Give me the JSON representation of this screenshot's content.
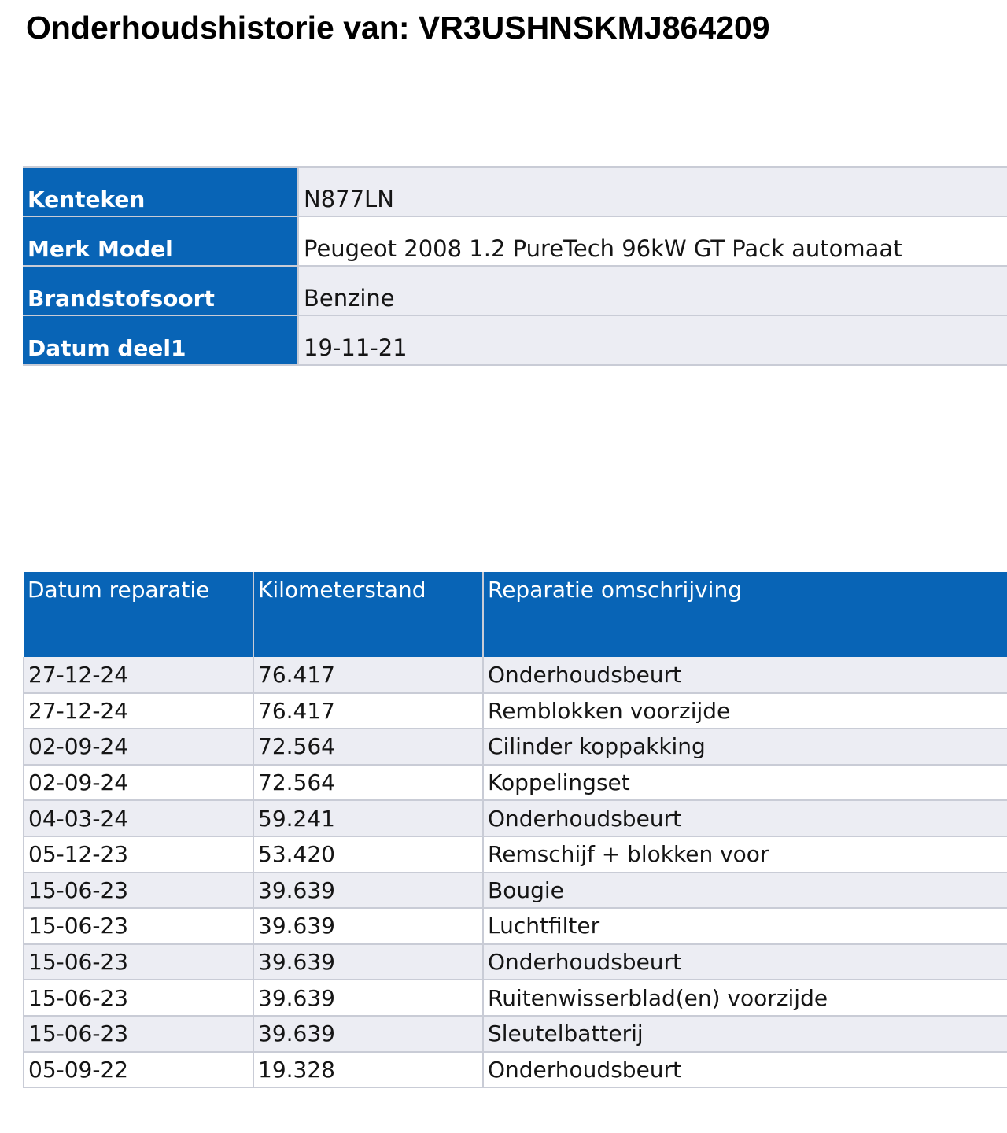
{
  "document": {
    "title": "Onderhoudshistorie van: VR3USHNSKMJ864209"
  },
  "vehicle": {
    "rows": [
      {
        "label": "Kenteken",
        "value": "N877LN"
      },
      {
        "label": "Merk Model",
        "value": "Peugeot 2008 1.2 PureTech 96kW GT Pack automaat"
      },
      {
        "label": "Brandstofsoort",
        "value": "Benzine"
      },
      {
        "label": "Datum deel1",
        "value": "19-11-21"
      }
    ]
  },
  "history": {
    "headers": [
      "Datum reparatie",
      "Kilometerstand",
      "Reparatie omschrijving"
    ],
    "rows": [
      [
        "27-12-24",
        "76.417",
        "Onderhoudsbeurt"
      ],
      [
        "27-12-24",
        "76.417",
        "Remblokken voorzijde"
      ],
      [
        "02-09-24",
        "72.564",
        "Cilinder koppakking"
      ],
      [
        "02-09-24",
        "72.564",
        "Koppelingset"
      ],
      [
        "04-03-24",
        "59.241",
        "Onderhoudsbeurt"
      ],
      [
        "05-12-23",
        "53.420",
        "Remschijf + blokken voor"
      ],
      [
        "15-06-23",
        "39.639",
        "Bougie"
      ],
      [
        "15-06-23",
        "39.639",
        "Luchtfilter"
      ],
      [
        "15-06-23",
        "39.639",
        "Onderhoudsbeurt"
      ],
      [
        "15-06-23",
        "39.639",
        "Ruitenwisserblad(en) voorzijde"
      ],
      [
        "15-06-23",
        "39.639",
        "Sleutelbatterij"
      ],
      [
        "05-09-22",
        "19.328",
        "Onderhoudsbeurt"
      ]
    ]
  },
  "colors": {
    "header_blue": "#0864b6",
    "row_shade": "#ecedf3",
    "grid_line": "#c9ccd6"
  }
}
